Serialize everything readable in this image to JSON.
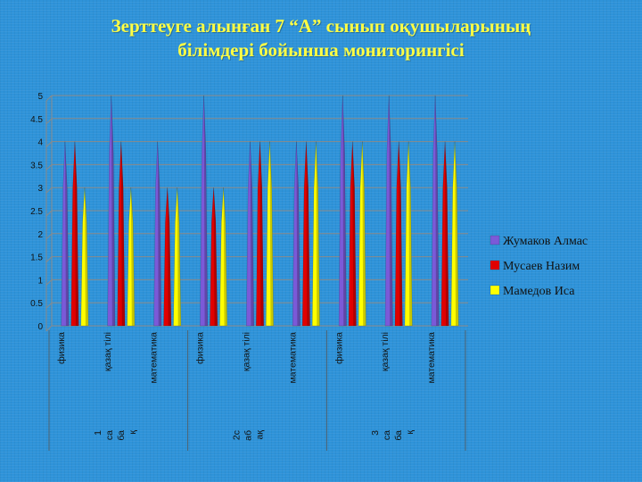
{
  "title_line1": "Зерттеуге алынған 7 “А” сынып оқушыларының",
  "title_line2": "білімдері бойынша  мониторингісі",
  "chart_data": {
    "type": "bar",
    "title": "Зерттеуге алынған 7 “А” сынып оқушыларының білімдері бойынша  мониторингісі",
    "ylim": [
      0,
      5
    ],
    "yticks": [
      "0",
      "0.5",
      "1",
      "1.5",
      "2",
      "2.5",
      "3",
      "3.5",
      "4",
      "4.5",
      "5"
    ],
    "grid": true,
    "legend_position": "right",
    "categories": [
      "физика",
      "қазақ тілі",
      "математика",
      "физика",
      "қазақ тілі",
      "математика",
      "физика",
      "қазақ тілі",
      "математика"
    ],
    "quarters": [
      {
        "label": [
          "1",
          "са",
          "ба",
          "қ"
        ]
      },
      {
        "label": [
          "2с",
          "аб",
          "ақ"
        ]
      },
      {
        "label": [
          "3",
          "са",
          "ба",
          "қ"
        ]
      }
    ],
    "series": [
      {
        "name": "Жумаков Алмас",
        "color": "#7b5ad8",
        "values": [
          4.0,
          5.0,
          4.0,
          5.0,
          4.0,
          4.0,
          5.0,
          5.0,
          5.0
        ]
      },
      {
        "name": "Мусаев Назим",
        "color": "#e00000",
        "values": [
          4.0,
          4.0,
          3.0,
          3.0,
          4.0,
          4.0,
          4.0,
          4.0,
          4.0
        ]
      },
      {
        "name": "Мамедов Иса",
        "color": "#ffff00",
        "values": [
          3.0,
          3.0,
          3.0,
          3.0,
          4.0,
          4.0,
          4.0,
          4.0,
          4.0
        ]
      }
    ]
  }
}
